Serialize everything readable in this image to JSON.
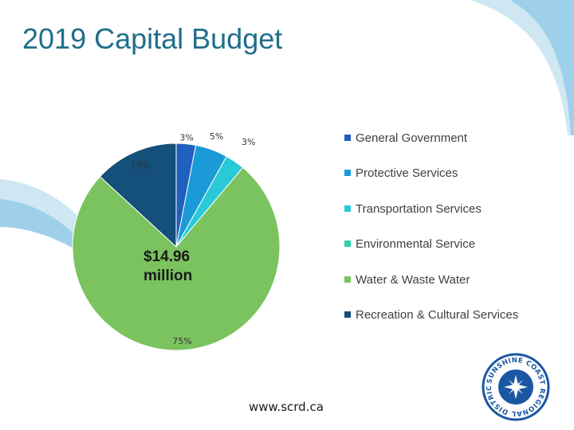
{
  "slide": {
    "title": "2019 Capital Budget",
    "center_label_line1": "$14.96",
    "center_label_line2": "million",
    "footer_url": "www.scrd.ca",
    "logo_text": "SUNSHINE COAST REGIONAL DISTRICT"
  },
  "colors": {
    "title": "#1f6f8b",
    "decor_light": "#cfe7f3",
    "decor_mid": "#9fd0ea",
    "logo_blue": "#1b57a3"
  },
  "chart_data": {
    "type": "pie",
    "categories": [
      "General Government",
      "Protective Services",
      "Transportation Services",
      "Environmental Service",
      "Water & Waste Water",
      "Recreation & Cultural Services"
    ],
    "values": [
      3,
      5,
      3,
      0,
      75,
      13
    ],
    "labels": [
      "3%",
      "5%",
      "3%",
      "",
      "75%",
      "13%"
    ],
    "colors": [
      "#1f5fbf",
      "#1a9ad6",
      "#29c9d8",
      "#2fd0b0",
      "#7ac35f",
      "#14507a"
    ],
    "start_angle_deg": -90,
    "legend_position": "right"
  }
}
